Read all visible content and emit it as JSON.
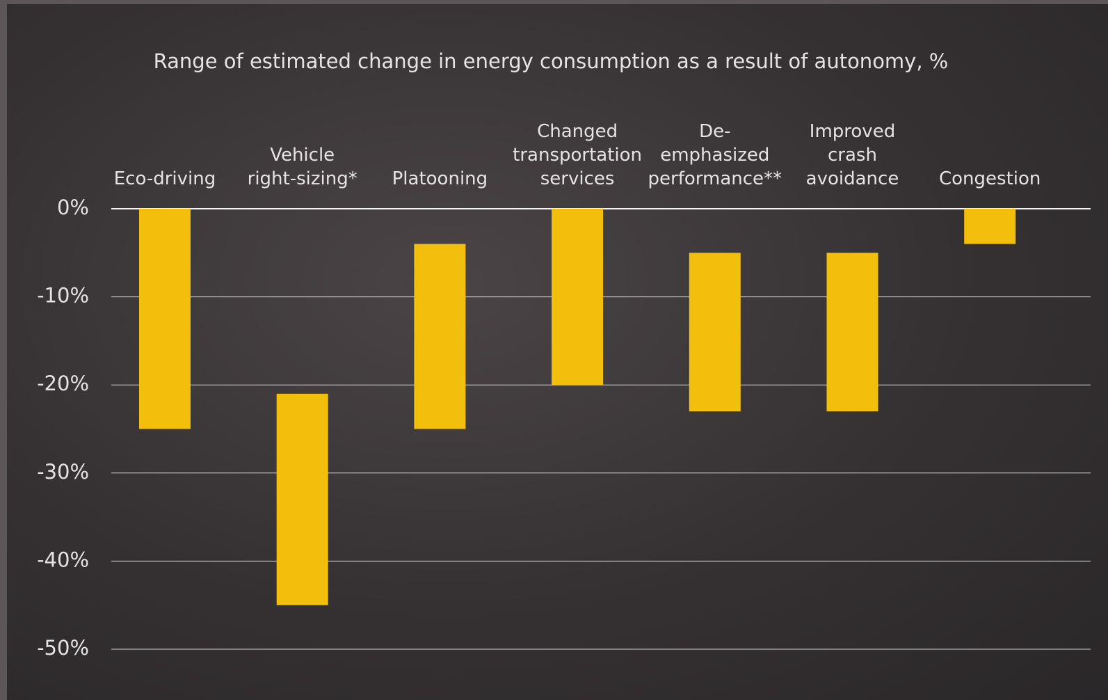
{
  "chart_data": {
    "type": "floating-bar",
    "title": "Range of estimated change in energy consumption as a result of autonomy, %",
    "categories": [
      "Eco-driving",
      "Vehicle\nright-sizing*",
      "Platooning",
      "Changed\ntransportation\nservices",
      "De-emphasized\nperformance**",
      "Improved\ncrash\navoidance",
      "Congestion"
    ],
    "top": [
      0,
      -21,
      -4,
      0,
      -5,
      -5,
      0
    ],
    "bottom": [
      -25,
      -45,
      -25,
      -20,
      -23,
      -23,
      -4
    ],
    "color": "#f2bf0c",
    "ylim": [
      -50,
      0
    ],
    "yticks": [
      {
        "value": 0,
        "label": "0%"
      },
      {
        "value": -10,
        "label": "-10%"
      },
      {
        "value": -20,
        "label": "-20%"
      },
      {
        "value": -30,
        "label": "-30%"
      },
      {
        "value": -40,
        "label": "-40%"
      },
      {
        "value": -50,
        "label": "-50%"
      }
    ],
    "grid": true
  }
}
